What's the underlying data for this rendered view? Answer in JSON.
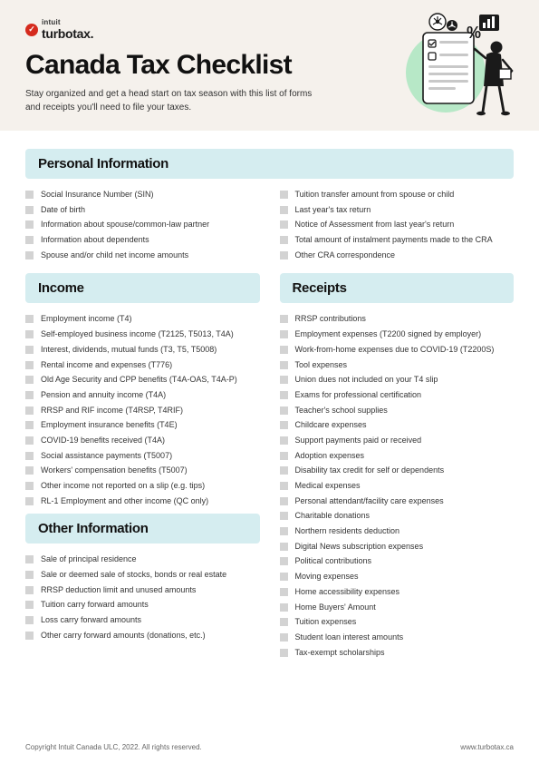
{
  "logo": {
    "intuit": "intuit",
    "brand": "turbotax."
  },
  "title": "Canada Tax Checklist",
  "subtitle": "Stay organized and get a head start on tax season with this list of forms and receipts you'll need to file your taxes.",
  "sections": {
    "personal": {
      "heading": "Personal Information",
      "left": [
        "Social Insurance Number (SIN)",
        "Date of birth",
        "Information about spouse/common-law partner",
        "Information about dependents",
        "Spouse and/or child net income amounts"
      ],
      "right": [
        "Tuition transfer amount from spouse or child",
        "Last year's tax return",
        "Notice of Assessment from last year's return",
        "Total amount of instalment payments made to the CRA",
        "Other CRA correspondence"
      ]
    },
    "income": {
      "heading": "Income",
      "items": [
        "Employment income (T4)",
        "Self-employed business income (T2125, T5013, T4A)",
        "Interest, dividends, mutual funds (T3, T5, T5008)",
        "Rental income and expenses (T776)",
        "Old Age Security and CPP benefits (T4A-OAS, T4A-P)",
        "Pension and annuity income (T4A)",
        "RRSP and RIF income (T4RSP, T4RIF)",
        "Employment insurance benefits (T4E)",
        "COVID-19 benefits received (T4A)",
        "Social assistance payments (T5007)",
        "Workers' compensation benefits (T5007)",
        "Other income not reported on a slip (e.g. tips)",
        "RL-1 Employment and other income (QC only)"
      ]
    },
    "receipts": {
      "heading": "Receipts",
      "items": [
        "RRSP contributions",
        "Employment expenses (T2200 signed by  employer)",
        "Work-from-home expenses due to COVID-19 (T2200S)",
        "Tool expenses",
        "Union dues not included on your T4 slip",
        "Exams for professional certification",
        "Teacher's school supplies",
        "Childcare expenses",
        "Support payments paid or received",
        "Adoption expenses",
        "Disability tax credit for self or dependents",
        "Medical expenses",
        "Personal attendant/facility care expenses",
        "Charitable donations",
        "Northern residents deduction",
        "Digital News subscription expenses",
        "Political contributions",
        "Moving expenses",
        "Home accessibility expenses",
        "Home Buyers' Amount",
        "Tuition expenses",
        "Student loan interest amounts",
        "Tax-exempt scholarships"
      ]
    },
    "other": {
      "heading": "Other Information",
      "items": [
        "Sale of principal residence",
        "Sale or deemed sale of stocks, bonds or real estate",
        "RRSP deduction limit and unused amounts",
        "Tuition carry forward amounts",
        "Loss carry forward amounts",
        "Other carry forward amounts (donations, etc.)"
      ]
    }
  },
  "footer": {
    "copyright": "Copyright Intuit Canada ULC, 2022. All rights reserved.",
    "url": "www.turbotax.ca"
  },
  "colors": {
    "header_bg": "#f5f1ec",
    "section_bar": "#d5edf0",
    "checkbox": "#d3d3d3",
    "logo_red": "#d52b1e"
  }
}
